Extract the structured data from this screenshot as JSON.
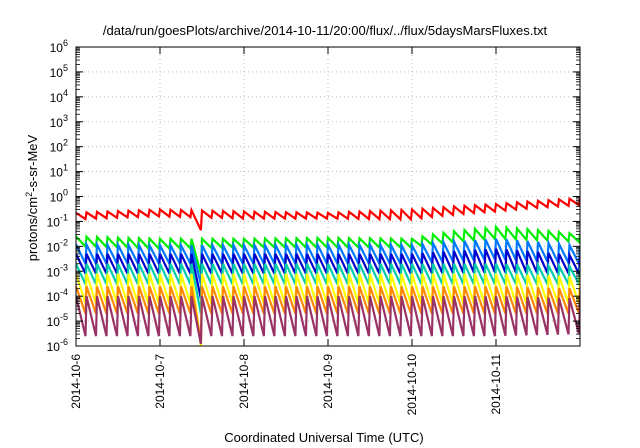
{
  "chart_data": {
    "type": "line",
    "title": "/data/run/goesPlots/archive/2014-10-11/20:00/flux/../flux/5daysMarsFluxes.txt",
    "xlabel": "Coordinated Universal Time (UTC)",
    "ylabel_parts": [
      "protons/cm",
      "2",
      "-s-sr-MeV"
    ],
    "x_ticks": [
      "2014-10-6",
      "2014-10-7",
      "2014-10-8",
      "2014-10-9",
      "2014-10-10",
      "2014-10-11"
    ],
    "xlim": [
      0,
      6
    ],
    "y_scale": "log",
    "ylim": [
      1e-06,
      1000000.0
    ],
    "y_ticks": [
      {
        "base": "10",
        "exp": "-6"
      },
      {
        "base": "10",
        "exp": "-5"
      },
      {
        "base": "10",
        "exp": "-4"
      },
      {
        "base": "10",
        "exp": "-3"
      },
      {
        "base": "10",
        "exp": "-2"
      },
      {
        "base": "10",
        "exp": "-1"
      },
      {
        "base": "10",
        "exp": "0"
      },
      {
        "base": "10",
        "exp": "1"
      },
      {
        "base": "10",
        "exp": "2"
      },
      {
        "base": "10",
        "exp": "3"
      },
      {
        "base": "10",
        "exp": "4"
      },
      {
        "base": "10",
        "exp": "5"
      },
      {
        "base": "10",
        "exp": "6"
      }
    ],
    "grid": true,
    "sawtooth_period_days": 0.125,
    "series": [
      {
        "color": "#ff0000",
        "peak": [
          0.22,
          0.3,
          0.25,
          0.22,
          0.3,
          0.5,
          0.85
        ],
        "trough": [
          0.12,
          0.16,
          0.13,
          0.13,
          0.12,
          0.25,
          0.45
        ],
        "drop_day": 1.45,
        "drop_min": 0.045
      },
      {
        "color": "#00ee00",
        "peak": [
          0.025,
          0.02,
          0.02,
          0.022,
          0.02,
          0.06,
          0.03
        ],
        "trough": [
          0.01,
          0.008,
          0.009,
          0.009,
          0.009,
          0.02,
          0.015
        ],
        "drop_day": 1.45,
        "drop_min": 0.0008
      },
      {
        "color": "#0077ff",
        "peak": [
          0.012,
          0.011,
          0.011,
          0.012,
          0.011,
          0.02,
          0.01
        ],
        "trough": [
          0.002,
          0.002,
          0.002,
          0.002,
          0.002,
          0.003,
          0.002
        ],
        "drop_day": 1.45,
        "drop_min": 0.0003
      },
      {
        "color": "#0000cc",
        "peak": [
          0.005,
          0.005,
          0.005,
          0.005,
          0.005,
          0.008,
          0.004
        ],
        "trough": [
          0.0008,
          0.0008,
          0.0008,
          0.0008,
          0.0008,
          0.0009,
          0.0008
        ],
        "drop_day": 1.45,
        "drop_min": 8e-05
      },
      {
        "color": "#00ccaa",
        "peak": [
          0.002,
          0.002,
          0.002,
          0.002,
          0.002,
          0.002,
          0.0015
        ],
        "trough": [
          0.0003,
          0.0003,
          0.0003,
          0.0003,
          0.0003,
          0.0003,
          0.0003
        ],
        "drop_day": 1.45,
        "drop_min": 2e-05
      },
      {
        "color": "#ffff00",
        "peak": [
          0.0008,
          0.0008,
          0.0008,
          0.0008,
          0.0008,
          0.0008,
          0.0006
        ],
        "trough": [
          5e-05,
          5e-05,
          5e-05,
          5e-05,
          5e-05,
          5e-05,
          5e-05
        ],
        "drop_day": 1.45,
        "drop_min": 1e-06
      },
      {
        "color": "#ff8800",
        "peak": [
          0.00025,
          0.00025,
          0.00025,
          0.00025,
          0.00025,
          0.00025,
          0.0002
        ],
        "trough": [
          2e-05,
          2e-05,
          2e-05,
          2e-05,
          2e-05,
          2e-05,
          2e-05
        ],
        "drop_day": 1.45,
        "drop_min": 1.5e-06
      },
      {
        "color": "#993366",
        "peak": [
          0.0001,
          0.0001,
          0.0001,
          0.0001,
          0.0001,
          0.0001,
          8e-05
        ],
        "trough": [
          2.5e-06,
          2.5e-06,
          2.5e-06,
          2.5e-06,
          2.5e-06,
          2.5e-06,
          3e-06
        ],
        "drop_day": 1.45,
        "drop_min": 1.2e-06
      }
    ]
  }
}
